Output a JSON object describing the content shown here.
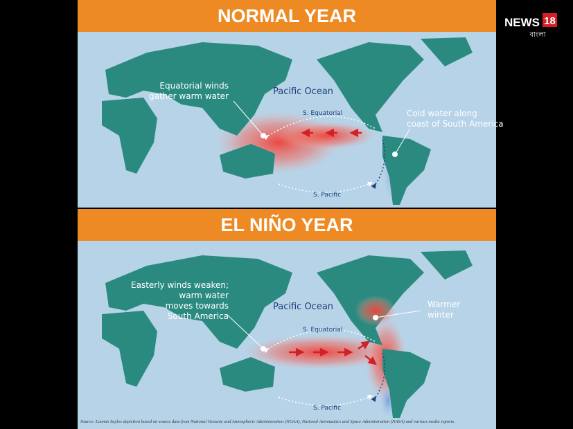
{
  "logo": {
    "name": "NEWS",
    "number": "18",
    "sub": "বাংলা"
  },
  "panels": [
    {
      "title": "NORMAL YEAR",
      "callout": [
        "Equatorial winds",
        "gather warm water"
      ],
      "ocean": "Pacific Ocean",
      "current_top": "S. Equatorial",
      "callout_right": [
        "Cold water along",
        "coast of South America"
      ],
      "current_bottom": "S. Pacific"
    },
    {
      "title": "EL NIÑO YEAR",
      "callout": [
        "Easterly winds weaken;",
        "warm water",
        "moves towards",
        "South America"
      ],
      "ocean": "Pacific Ocean",
      "current_top": "S. Equatorial",
      "callout_right": [
        "Warmer",
        "winter"
      ],
      "current_bottom": "S. Pacific"
    }
  ],
  "source": "Source: Loomis Sayles depiction based on source data from National Oceanic and Atmospheric Administration (NOAA), National Aeronautics and Space Administration (NASA) and various media reports."
}
